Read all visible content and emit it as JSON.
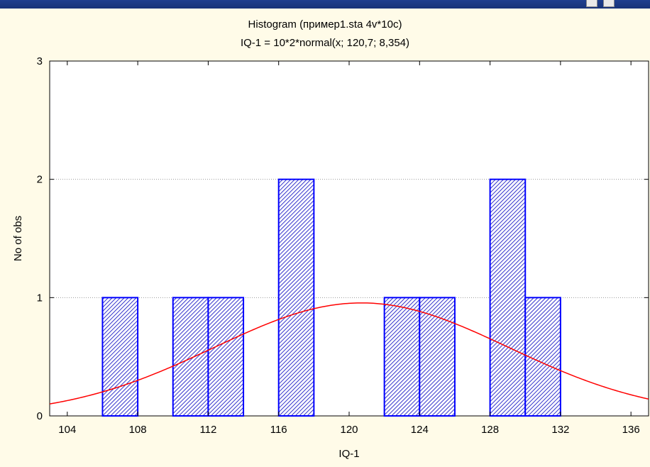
{
  "chart_data": {
    "type": "bar",
    "title": "Histogram (пример1.sta 4v*10c)",
    "subtitle": "IQ-1 = 10*2*normal(x; 120,7; 8,354)",
    "xlabel": "IQ-1",
    "ylabel": "No of obs",
    "xlim": [
      103,
      137
    ],
    "ylim": [
      0,
      3
    ],
    "xticks": [
      104,
      108,
      112,
      116,
      120,
      124,
      128,
      132,
      136
    ],
    "yticks": [
      0,
      1,
      2,
      3
    ],
    "grid": "horizontal dotted",
    "bin_width": 2,
    "bins": [
      {
        "x0": 106,
        "x1": 108,
        "count": 1
      },
      {
        "x0": 110,
        "x1": 112,
        "count": 1
      },
      {
        "x0": 112,
        "x1": 114,
        "count": 1
      },
      {
        "x0": 116,
        "x1": 118,
        "count": 2
      },
      {
        "x0": 122,
        "x1": 124,
        "count": 1
      },
      {
        "x0": 124,
        "x1": 126,
        "count": 1
      },
      {
        "x0": 128,
        "x1": 130,
        "count": 2
      },
      {
        "x0": 130,
        "x1": 132,
        "count": 1
      }
    ],
    "fit_curve": {
      "type": "normal",
      "n": 10,
      "bin_width": 2,
      "mean": 120.7,
      "sd": 8.354
    },
    "colors": {
      "bar_stroke": "#0000ff",
      "bar_hatch": "#3333cc",
      "curve": "#ff0000",
      "background": "#fffbe8"
    }
  }
}
